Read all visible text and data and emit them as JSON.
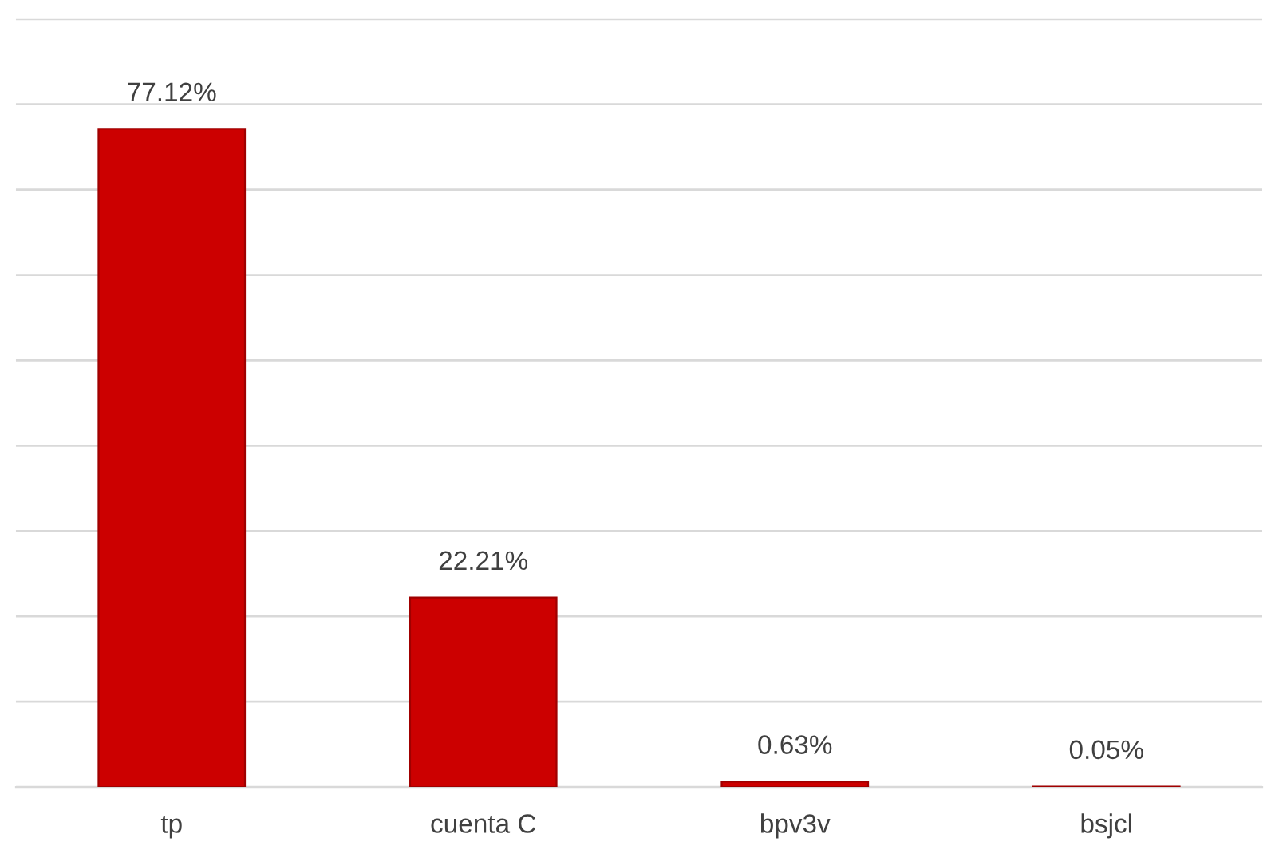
{
  "chart_data": {
    "type": "bar",
    "categories": [
      "tp",
      "cuenta C",
      "bpv3v",
      "bsjcl"
    ],
    "values": [
      77.12,
      22.21,
      0.63,
      0.05
    ],
    "value_labels": [
      "77.12%",
      "22.21%",
      "0.63%",
      "0.05%"
    ],
    "color": "#cc0000",
    "ylim": [
      0,
      90
    ],
    "yticks": [
      {
        "value": 0,
        "label": null
      },
      {
        "value": 10,
        "label": null
      },
      {
        "value": 20,
        "label": null
      },
      {
        "value": 30,
        "label": null
      },
      {
        "value": 40,
        "label": null
      },
      {
        "value": 50,
        "label": null
      },
      {
        "value": 60,
        "label": null
      },
      {
        "value": 70,
        "label": null
      },
      {
        "value": 80,
        "label": null
      },
      {
        "value": 90,
        "label": null
      }
    ],
    "grid": "y",
    "tick_labels": "x"
  }
}
